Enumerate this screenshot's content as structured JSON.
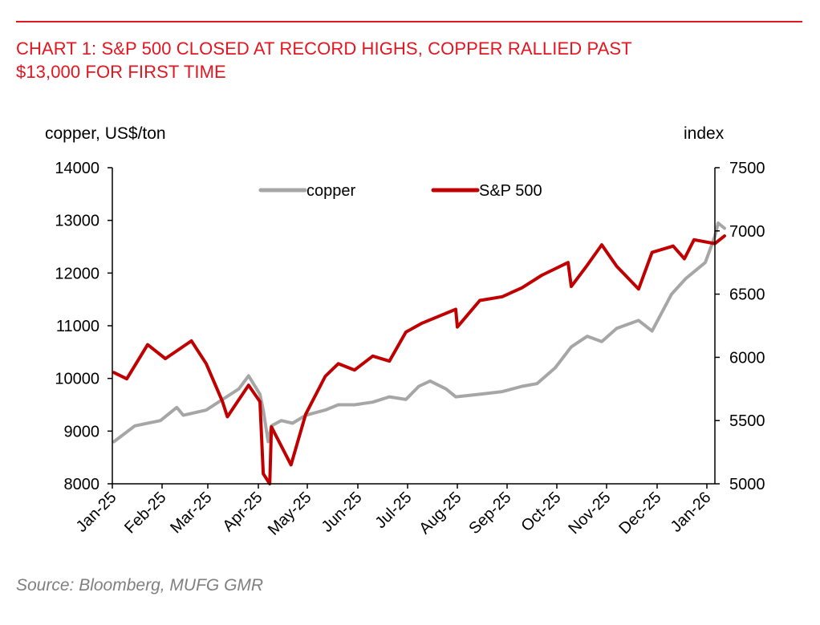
{
  "header": {
    "title_line1": "CHART 1: S&P 500 CLOSED AT RECORD HIGHS, COPPER RALLIED PAST",
    "title_line2": "$13,000 FOR FIRST TIME"
  },
  "footer": {
    "source": "Source: Bloomberg, MUFG GMR"
  },
  "colors": {
    "accent": "#e3151f",
    "copper": "#a6a6a6",
    "sp500": "#c00000"
  },
  "chart_data": {
    "type": "line",
    "left_axis": {
      "label": "copper, US$/ton",
      "range": [
        8000,
        14000
      ],
      "ticks": [
        "14000",
        "13000",
        "12000",
        "11000",
        "10000",
        "9000",
        "8000"
      ]
    },
    "right_axis": {
      "label": "index",
      "range": [
        5000,
        7500
      ],
      "ticks": [
        "7500",
        "7000",
        "6500",
        "6000",
        "5500",
        "5000"
      ]
    },
    "x_axis": {
      "ticks": [
        "Jan-25",
        "Feb-25",
        "Mar-25",
        "Apr-25",
        "May-25",
        "Jun-25",
        "Jul-25",
        "Aug-25",
        "Sep-25",
        "Oct-25",
        "Nov-25",
        "Dec-25",
        "Jan-26"
      ]
    },
    "legend": {
      "position": "top-center",
      "entries": [
        "copper",
        "S&P 500"
      ]
    },
    "grid": false,
    "series": [
      {
        "name": "copper",
        "axis": "left",
        "x": [
          "2025-01-02",
          "2025-01-15",
          "2025-01-31",
          "2025-02-10",
          "2025-02-14",
          "2025-02-28",
          "2025-03-10",
          "2025-03-20",
          "2025-03-26",
          "2025-04-02",
          "2025-04-04",
          "2025-04-07",
          "2025-04-09",
          "2025-04-15",
          "2025-04-22",
          "2025-04-30",
          "2025-05-12",
          "2025-05-20",
          "2025-05-30",
          "2025-06-10",
          "2025-06-20",
          "2025-06-30",
          "2025-07-08",
          "2025-07-15",
          "2025-07-25",
          "2025-07-31",
          "2025-08-15",
          "2025-08-29",
          "2025-09-10",
          "2025-09-19",
          "2025-09-30",
          "2025-10-10",
          "2025-10-20",
          "2025-10-29",
          "2025-11-07",
          "2025-11-20",
          "2025-11-28",
          "2025-12-10",
          "2025-12-19",
          "2025-12-31",
          "2026-01-06",
          "2026-01-08",
          "2026-01-12"
        ],
        "values": [
          8800,
          9100,
          9200,
          9450,
          9300,
          9400,
          9600,
          9800,
          10050,
          9700,
          9400,
          8800,
          9100,
          9200,
          9150,
          9300,
          9400,
          9500,
          9500,
          9550,
          9650,
          9600,
          9850,
          9950,
          9800,
          9650,
          9700,
          9750,
          9850,
          9900,
          10200,
          10600,
          10800,
          10700,
          10950,
          11100,
          10900,
          11600,
          11900,
          12200,
          12700,
          12950,
          12850
        ]
      },
      {
        "name": "S&P 500",
        "axis": "right",
        "x": [
          "2025-01-02",
          "2025-01-10",
          "2025-01-23",
          "2025-02-03",
          "2025-02-19",
          "2025-02-28",
          "2025-03-10",
          "2025-03-13",
          "2025-03-26",
          "2025-04-02",
          "2025-04-04",
          "2025-04-08",
          "2025-04-09",
          "2025-04-21",
          "2025-04-30",
          "2025-05-12",
          "2025-05-20",
          "2025-05-30",
          "2025-06-10",
          "2025-06-20",
          "2025-06-30",
          "2025-07-10",
          "2025-07-31",
          "2025-08-01",
          "2025-08-15",
          "2025-08-29",
          "2025-09-10",
          "2025-09-22",
          "2025-10-08",
          "2025-10-10",
          "2025-10-20",
          "2025-10-29",
          "2025-11-07",
          "2025-11-20",
          "2025-11-28",
          "2025-12-11",
          "2025-12-18",
          "2025-12-24",
          "2026-01-06",
          "2026-01-12"
        ],
        "values": [
          5880,
          5830,
          6100,
          5990,
          6130,
          5950,
          5650,
          5530,
          5780,
          5650,
          5080,
          5000,
          5450,
          5150,
          5550,
          5850,
          5950,
          5900,
          6010,
          5970,
          6200,
          6270,
          6380,
          6240,
          6450,
          6480,
          6550,
          6650,
          6750,
          6560,
          6730,
          6890,
          6720,
          6540,
          6830,
          6880,
          6780,
          6930,
          6900,
          6960
        ]
      }
    ]
  }
}
